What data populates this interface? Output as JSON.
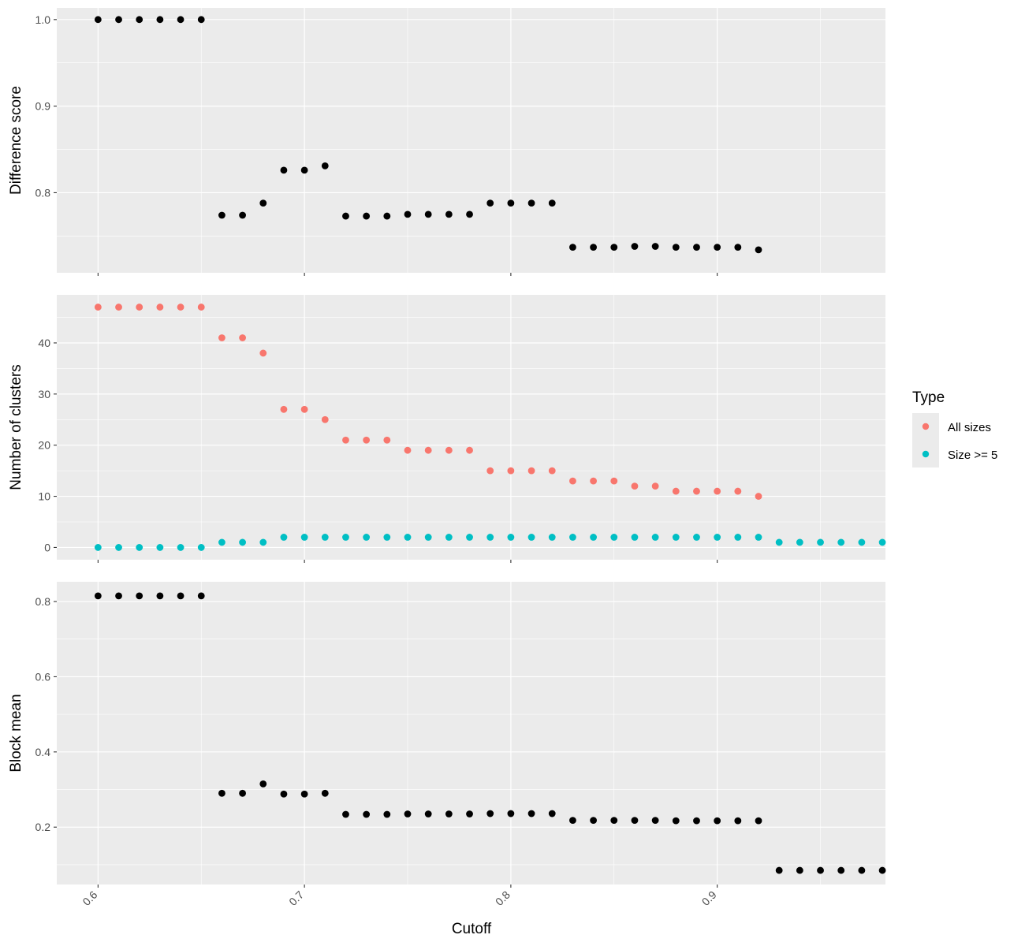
{
  "chart_data": {
    "type": "scatter",
    "xlabel": "Cutoff",
    "x_ticks": [
      0.6,
      0.7,
      0.8,
      0.9
    ],
    "x_tick_labels": [
      "0.6",
      "0.7",
      "0.8",
      "0.9"
    ],
    "xlim": [
      0.58,
      0.9815
    ],
    "x": [
      0.6,
      0.61,
      0.62,
      0.63,
      0.64,
      0.65,
      0.66,
      0.67,
      0.68,
      0.69,
      0.7,
      0.71,
      0.72,
      0.73,
      0.74,
      0.75,
      0.76,
      0.77,
      0.78,
      0.79,
      0.8,
      0.81,
      0.82,
      0.83,
      0.84,
      0.85,
      0.86,
      0.87,
      0.88,
      0.89,
      0.9,
      0.91,
      0.92,
      0.93,
      0.94,
      0.95,
      0.96,
      0.97,
      0.98
    ],
    "grid": true,
    "panels": [
      {
        "ylabel": "Difference score",
        "ylim": [
          0.7075,
          1.0135
        ],
        "y_ticks": [
          0.8,
          0.9,
          1.0
        ],
        "y_tick_labels": [
          "0.8",
          "0.9",
          "1.0"
        ],
        "series": [
          {
            "color": "#000000",
            "values": [
              1.0,
              1.0,
              1.0,
              1.0,
              1.0,
              1.0,
              0.774,
              0.774,
              0.788,
              0.826,
              0.826,
              0.831,
              0.773,
              0.773,
              0.773,
              0.775,
              0.775,
              0.775,
              0.775,
              0.788,
              0.788,
              0.788,
              0.788,
              0.737,
              0.737,
              0.737,
              0.738,
              0.738,
              0.737,
              0.737,
              0.737,
              0.737,
              0.734,
              null,
              null,
              null,
              null,
              null,
              null
            ]
          }
        ]
      },
      {
        "ylabel": "Number of clusters",
        "ylim": [
          -2.4,
          49.4
        ],
        "y_ticks": [
          0,
          10,
          20,
          30,
          40
        ],
        "y_tick_labels": [
          "0",
          "10",
          "20",
          "30",
          "40"
        ],
        "series": [
          {
            "name": "All sizes",
            "color": "#F8766D",
            "values": [
              47,
              47,
              47,
              47,
              47,
              47,
              41,
              41,
              38,
              27,
              27,
              25,
              21,
              21,
              21,
              19,
              19,
              19,
              19,
              15,
              15,
              15,
              15,
              13,
              13,
              13,
              12,
              12,
              11,
              11,
              11,
              11,
              10,
              null,
              null,
              null,
              null,
              null,
              null
            ]
          },
          {
            "name": "Size >= 5",
            "color": "#00BFC4",
            "values": [
              0,
              0,
              0,
              0,
              0,
              0,
              1,
              1,
              1,
              2,
              2,
              2,
              2,
              2,
              2,
              2,
              2,
              2,
              2,
              2,
              2,
              2,
              2,
              2,
              2,
              2,
              2,
              2,
              2,
              2,
              2,
              2,
              2,
              1,
              1,
              1,
              1,
              1,
              1
            ]
          }
        ]
      },
      {
        "ylabel": "Block mean",
        "ylim": [
          0.0474,
          0.8525
        ],
        "y_ticks": [
          0.2,
          0.4,
          0.6,
          0.8
        ],
        "y_tick_labels": [
          "0.2",
          "0.4",
          "0.6",
          "0.8"
        ],
        "series": [
          {
            "color": "#000000",
            "values": [
              0.815,
              0.815,
              0.815,
              0.815,
              0.815,
              0.815,
              0.29,
              0.29,
              0.315,
              0.288,
              0.288,
              0.29,
              0.234,
              0.234,
              0.234,
              0.235,
              0.235,
              0.235,
              0.235,
              0.236,
              0.236,
              0.236,
              0.236,
              0.218,
              0.218,
              0.218,
              0.218,
              0.218,
              0.217,
              0.217,
              0.217,
              0.217,
              0.217,
              0.085,
              0.085,
              0.085,
              0.085,
              0.085,
              0.085
            ]
          }
        ]
      }
    ],
    "legend": {
      "title": "Type",
      "position": "right",
      "entries": [
        {
          "label": "All sizes",
          "color": "#F8766D"
        },
        {
          "label": "Size >= 5",
          "color": "#00BFC4"
        }
      ]
    }
  }
}
